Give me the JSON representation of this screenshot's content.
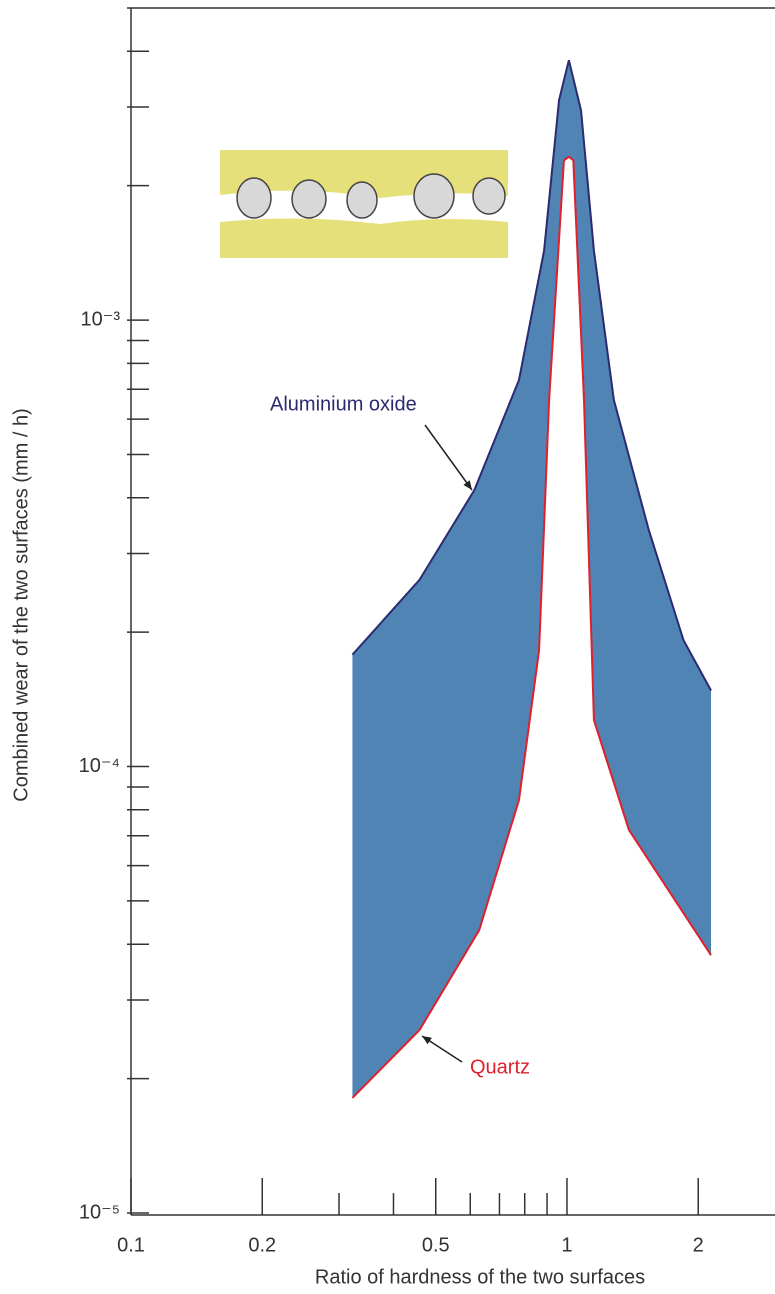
{
  "chart_data": {
    "type": "band",
    "x_label": "Ratio of hardness of the two surfaces",
    "y_label": "Combined wear of the two surfaces (mm / h)",
    "log_x": true,
    "log_y": true,
    "xlim": [
      0.1,
      3
    ],
    "ylim": [
      1e-05,
      0.005
    ],
    "xticks": [
      0.1,
      0.2,
      0.5,
      1,
      2
    ],
    "xticks_minor": [
      0.3,
      0.4,
      0.6,
      0.7,
      0.8,
      0.9
    ],
    "yticks": [
      {
        "value": 1e-05,
        "label": "10⁻⁵"
      },
      {
        "value": 0.0001,
        "label": "10⁻⁴"
      },
      {
        "value": 0.001,
        "label": "10⁻³"
      }
    ],
    "yticks_minor": [
      2e-05,
      3e-05,
      4e-05,
      5e-05,
      6e-05,
      7e-05,
      8e-05,
      9e-05,
      0.0002,
      0.0003,
      0.0004,
      0.0005,
      0.0006,
      0.0007,
      0.0008,
      0.0009,
      0.002,
      0.003,
      0.004
    ],
    "band_color": "#4f84b4",
    "series": [
      {
        "name": "Aluminium oxide",
        "color": "#2b2b70",
        "x": [
          0.322,
          0.459,
          0.613,
          0.776,
          0.886,
          0.959,
          1.01,
          1.077,
          1.153,
          1.281,
          1.54,
          1.85,
          2.14
        ],
        "values": [
          0.000178,
          0.000262,
          0.000416,
          0.000734,
          0.00143,
          0.00311,
          0.00382,
          0.00295,
          0.00143,
          0.000662,
          0.000339,
          0.000192,
          0.000148
        ]
      },
      {
        "name": "Quartz",
        "color": "#e0202c",
        "x": [
          0.322,
          0.459,
          0.629,
          0.776,
          0.863,
          0.91,
          0.984,
          1.01,
          1.034,
          1.094,
          1.153,
          1.387,
          2.14
        ],
        "values": [
          1.81e-05,
          2.57e-05,
          4.3e-05,
          8.41e-05,
          0.000182,
          0.000662,
          0.00228,
          0.00232,
          0.00228,
          0.000662,
          0.000127,
          7.21e-05,
          3.78e-05
        ]
      }
    ]
  }
}
